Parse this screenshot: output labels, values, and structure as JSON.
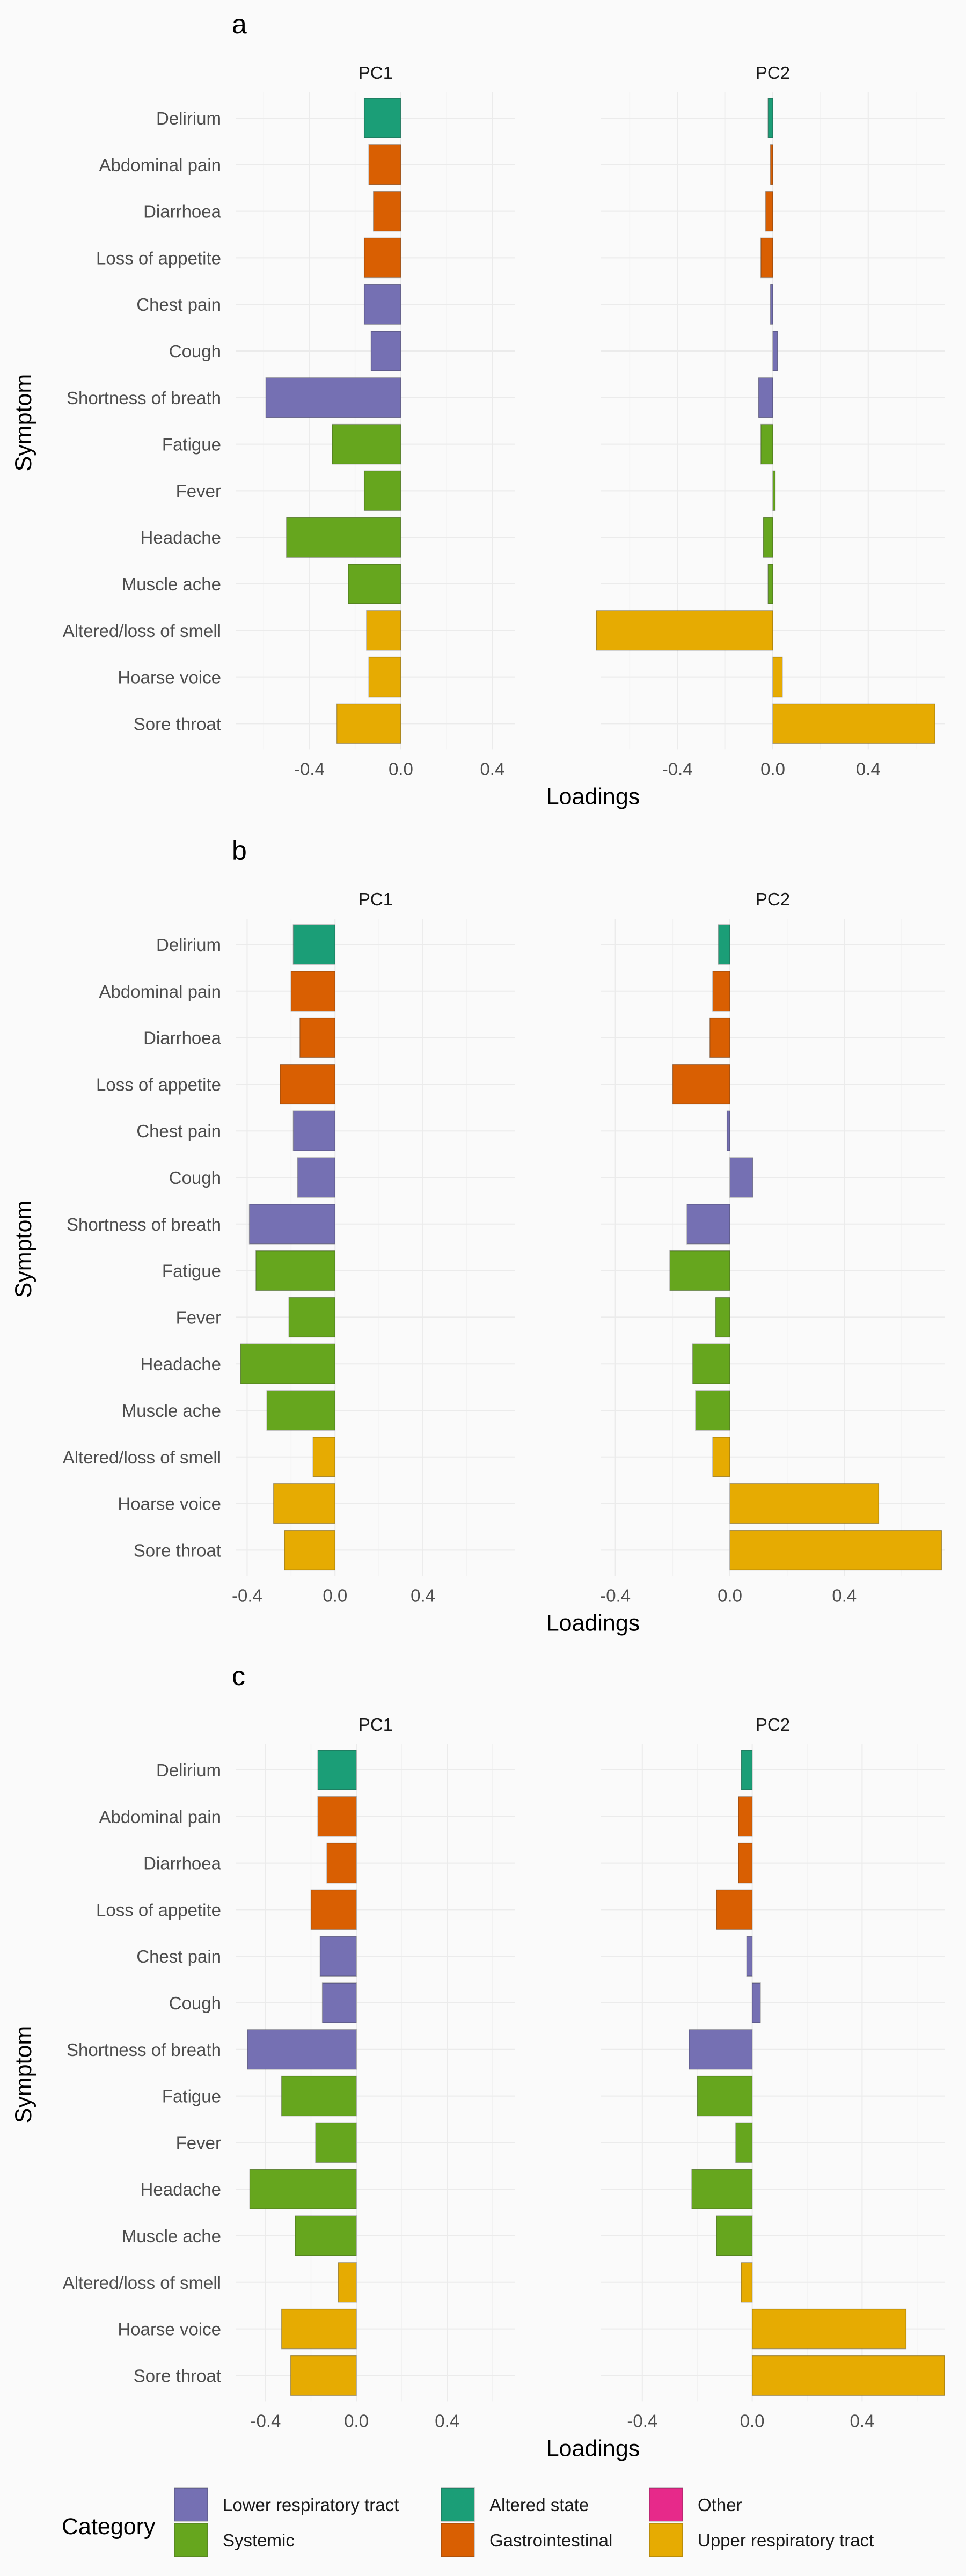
{
  "colors": {
    "Lower respiratory tract": "#7570b3",
    "Systemic": "#66a61e",
    "Altered state": "#1b9e77",
    "Gastrointestinal": "#d95f02",
    "Other": "#e7298a",
    "Upper respiratory tract": "#e6ab02"
  },
  "axis_labels": {
    "x": "Loadings",
    "y": "Symptom"
  },
  "legend": {
    "title": "Category",
    "items": [
      "Lower respiratory tract",
      "Systemic",
      "Altered state",
      "Gastrointestinal",
      "Other",
      "Upper respiratory tract"
    ]
  },
  "chart_data": [
    {
      "panel": "a",
      "type": "bar",
      "orientation": "horizontal",
      "symptoms": [
        "Delirium",
        "Abdominal pain",
        "Diarrhoea",
        "Loss of appetite",
        "Chest pain",
        "Cough",
        "Shortness of breath",
        "Fatigue",
        "Fever",
        "Headache",
        "Muscle ache",
        "Altered/loss of smell",
        "Hoarse voice",
        "Sore throat"
      ],
      "categories": [
        "Altered state",
        "Gastrointestinal",
        "Gastrointestinal",
        "Gastrointestinal",
        "Lower respiratory tract",
        "Lower respiratory tract",
        "Lower respiratory tract",
        "Systemic",
        "Systemic",
        "Systemic",
        "Systemic",
        "Upper respiratory tract",
        "Upper respiratory tract",
        "Upper respiratory tract"
      ],
      "facets": [
        {
          "name": "PC1",
          "ticks": [
            "-0.4",
            "0.0",
            "0.4"
          ],
          "tick_values": [
            -0.4,
            0,
            0.4
          ],
          "xlim": [
            -0.72,
            0.5
          ],
          "values": [
            -0.16,
            -0.14,
            -0.12,
            -0.16,
            -0.16,
            -0.13,
            -0.59,
            -0.3,
            -0.16,
            -0.5,
            -0.23,
            -0.15,
            -0.14,
            -0.28
          ]
        },
        {
          "name": "PC2",
          "ticks": [
            "-0.4",
            "0.0",
            "0.4"
          ],
          "tick_values": [
            -0.4,
            0,
            0.4
          ],
          "xlim": [
            -0.72,
            0.72
          ],
          "values": [
            -0.02,
            -0.01,
            -0.03,
            -0.05,
            -0.01,
            0.02,
            -0.06,
            -0.05,
            0.01,
            -0.04,
            -0.02,
            -0.74,
            0.04,
            0.68
          ]
        }
      ]
    },
    {
      "panel": "b",
      "type": "bar",
      "orientation": "horizontal",
      "symptoms": [
        "Delirium",
        "Abdominal pain",
        "Diarrhoea",
        "Loss of appetite",
        "Chest pain",
        "Cough",
        "Shortness of breath",
        "Fatigue",
        "Fever",
        "Headache",
        "Muscle ache",
        "Altered/loss of smell",
        "Hoarse voice",
        "Sore throat"
      ],
      "categories": [
        "Altered state",
        "Gastrointestinal",
        "Gastrointestinal",
        "Gastrointestinal",
        "Lower respiratory tract",
        "Lower respiratory tract",
        "Lower respiratory tract",
        "Systemic",
        "Systemic",
        "Systemic",
        "Systemic",
        "Upper respiratory tract",
        "Upper respiratory tract",
        "Upper respiratory tract"
      ],
      "facets": [
        {
          "name": "PC1",
          "ticks": [
            "-0.4",
            "0.0",
            "0.4"
          ],
          "tick_values": [
            -0.4,
            0,
            0.4
          ],
          "xlim": [
            -0.45,
            0.82
          ],
          "values": [
            -0.19,
            -0.2,
            -0.16,
            -0.25,
            -0.19,
            -0.17,
            -0.39,
            -0.36,
            -0.21,
            -0.43,
            -0.31,
            -0.1,
            -0.28,
            -0.23
          ]
        },
        {
          "name": "PC2",
          "ticks": [
            "-0.4",
            "0.0",
            "0.4"
          ],
          "tick_values": [
            -0.4,
            0,
            0.4
          ],
          "xlim": [
            -0.45,
            0.75
          ],
          "values": [
            -0.04,
            -0.06,
            -0.07,
            -0.2,
            -0.01,
            0.08,
            -0.15,
            -0.21,
            -0.05,
            -0.13,
            -0.12,
            -0.06,
            0.52,
            0.74
          ]
        }
      ]
    },
    {
      "panel": "c",
      "type": "bar",
      "orientation": "horizontal",
      "symptoms": [
        "Delirium",
        "Abdominal pain",
        "Diarrhoea",
        "Loss of appetite",
        "Chest pain",
        "Cough",
        "Shortness of breath",
        "Fatigue",
        "Fever",
        "Headache",
        "Muscle ache",
        "Altered/loss of smell",
        "Hoarse voice",
        "Sore throat"
      ],
      "categories": [
        "Altered state",
        "Gastrointestinal",
        "Gastrointestinal",
        "Gastrointestinal",
        "Lower respiratory tract",
        "Lower respiratory tract",
        "Lower respiratory tract",
        "Systemic",
        "Systemic",
        "Systemic",
        "Systemic",
        "Upper respiratory tract",
        "Upper respiratory tract",
        "Upper respiratory tract"
      ],
      "facets": [
        {
          "name": "PC1",
          "ticks": [
            "-0.4",
            "0.0",
            "0.4"
          ],
          "tick_values": [
            -0.4,
            0,
            0.4
          ],
          "xlim": [
            -0.53,
            0.7
          ],
          "values": [
            -0.17,
            -0.17,
            -0.13,
            -0.2,
            -0.16,
            -0.15,
            -0.48,
            -0.33,
            -0.18,
            -0.47,
            -0.27,
            -0.08,
            -0.33,
            -0.29
          ]
        },
        {
          "name": "PC2",
          "ticks": [
            "-0.4",
            "0.0",
            "0.4"
          ],
          "tick_values": [
            -0.4,
            0,
            0.4
          ],
          "xlim": [
            -0.55,
            0.7
          ],
          "values": [
            -0.04,
            -0.05,
            -0.05,
            -0.13,
            -0.02,
            0.03,
            -0.23,
            -0.2,
            -0.06,
            -0.22,
            -0.13,
            -0.04,
            0.56,
            0.7
          ]
        }
      ]
    }
  ]
}
